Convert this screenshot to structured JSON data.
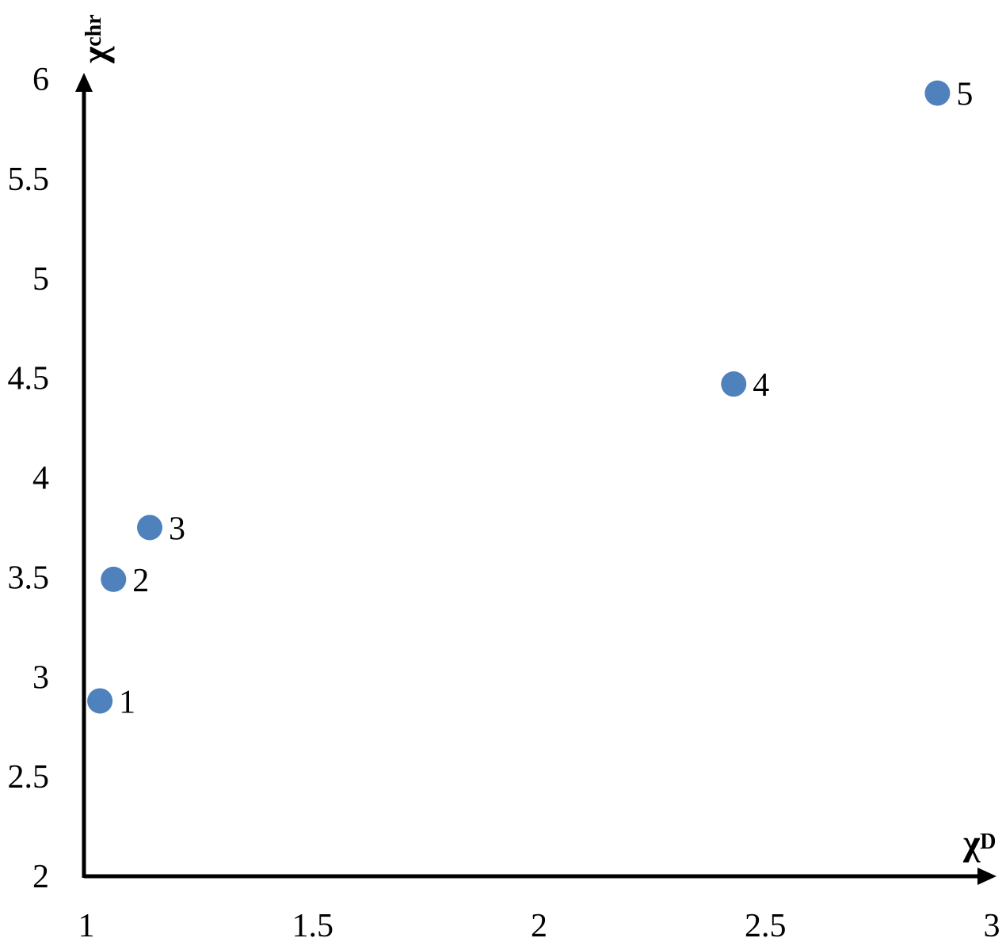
{
  "chart_data": {
    "type": "scatter",
    "title": "",
    "xlabel": {
      "symbol": "χ",
      "subscript": "D"
    },
    "ylabel": {
      "symbol": "χ",
      "subscript": "chr"
    },
    "xlim": [
      1,
      3
    ],
    "ylim": [
      2,
      6
    ],
    "x_ticks": [
      {
        "value": 1,
        "label": "1"
      },
      {
        "value": 1.5,
        "label": "1.5"
      },
      {
        "value": 2,
        "label": "2"
      },
      {
        "value": 2.5,
        "label": "2.5"
      },
      {
        "value": 3,
        "label": "3"
      }
    ],
    "y_ticks": [
      {
        "value": 2,
        "label": "2"
      },
      {
        "value": 2.5,
        "label": "2.5"
      },
      {
        "value": 3,
        "label": "3"
      },
      {
        "value": 3.5,
        "label": "3.5"
      },
      {
        "value": 4,
        "label": "4"
      },
      {
        "value": 4.5,
        "label": "4.5"
      },
      {
        "value": 5,
        "label": "5"
      },
      {
        "value": 5.5,
        "label": "5.5"
      },
      {
        "value": 6,
        "label": "6"
      }
    ],
    "grid": false,
    "legend": "none",
    "points": [
      {
        "label": "1",
        "x": 1.03,
        "y": 2.88
      },
      {
        "label": "2",
        "x": 1.06,
        "y": 3.49
      },
      {
        "label": "3",
        "x": 1.14,
        "y": 3.75
      },
      {
        "label": "4",
        "x": 2.43,
        "y": 4.47
      },
      {
        "label": "5",
        "x": 2.88,
        "y": 5.93
      }
    ],
    "colors": {
      "marker": "#4f81bd",
      "axis": "#000000"
    }
  }
}
